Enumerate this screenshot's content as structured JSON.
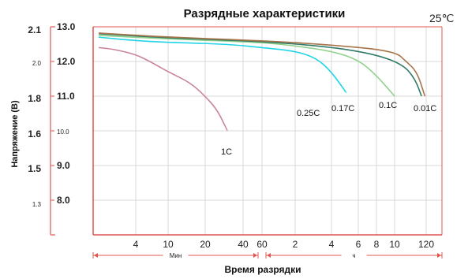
{
  "chart_data": {
    "type": "line",
    "title": "Разрядные характеристики",
    "temperature": "25℃",
    "ylabel": "Напряжение (В)",
    "xlabel": "Время разрядки",
    "x_scale": "log",
    "x_unit_ranges": [
      {
        "label": "Мин",
        "from": "0",
        "to": "60 мин"
      },
      {
        "label": "ч",
        "from": "60 мин",
        "to": "120 ч"
      }
    ],
    "x_ticks": [
      {
        "label": "4",
        "minutes": 4
      },
      {
        "label": "10",
        "minutes": 10
      },
      {
        "label": "20",
        "minutes": 20
      },
      {
        "label": "40",
        "minutes": 40
      },
      {
        "label": "60",
        "minutes": 60
      },
      {
        "label": "2",
        "minutes": 120
      },
      {
        "label": "4",
        "minutes": 240
      },
      {
        "label": "6",
        "minutes": 360
      },
      {
        "label": "8",
        "minutes": 480
      },
      {
        "label": "10",
        "minutes": 600
      },
      {
        "label": "120",
        "minutes": 7200
      }
    ],
    "y_cell_ticks": [
      {
        "label": "2.1",
        "value": 2.1
      },
      {
        "label": "2.0",
        "value": 2.0
      },
      {
        "label": "1.8",
        "value": 1.8
      },
      {
        "label": "1.6",
        "value": 1.6
      },
      {
        "label": "1.5",
        "value": 1.5
      },
      {
        "label": "1.3",
        "value": 1.3
      }
    ],
    "y_battery_ticks": [
      {
        "label": "13.0",
        "value": 13.0
      },
      {
        "label": "12.0",
        "value": 12.0
      },
      {
        "label": "11.0",
        "value": 11.0
      },
      {
        "label": "10.0",
        "value": 10.0
      },
      {
        "label": "9.0",
        "value": 9.0
      },
      {
        "label": "8.0",
        "value": 8.0
      }
    ],
    "ylim": [
      7.0,
      13.0
    ],
    "grid": true,
    "series": [
      {
        "name": "1C",
        "color": "#c9839a",
        "points": [
          [
            1.2,
            12.4
          ],
          [
            2,
            12.35
          ],
          [
            4,
            12.2
          ],
          [
            6,
            12.0
          ],
          [
            10,
            11.7
          ],
          [
            15,
            11.4
          ],
          [
            20,
            11.0
          ],
          [
            25,
            10.6
          ],
          [
            30,
            10.0
          ]
        ]
      },
      {
        "name": "0.25C",
        "color": "#22d4e6",
        "points": [
          [
            1.2,
            12.7
          ],
          [
            4,
            12.6
          ],
          [
            10,
            12.55
          ],
          [
            30,
            12.5
          ],
          [
            60,
            12.4
          ],
          [
            120,
            12.3
          ],
          [
            180,
            12.1
          ],
          [
            240,
            11.7
          ],
          [
            300,
            11.1
          ]
        ]
      },
      {
        "name": "0.17C",
        "color": "#8fd08a",
        "points": [
          [
            1.2,
            12.75
          ],
          [
            10,
            12.65
          ],
          [
            60,
            12.55
          ],
          [
            120,
            12.45
          ],
          [
            240,
            12.3
          ],
          [
            360,
            12.05
          ],
          [
            480,
            11.6
          ],
          [
            600,
            11.0
          ]
        ]
      },
      {
        "name": "0.1C",
        "color": "#2f7a66",
        "points": [
          [
            1.2,
            12.8
          ],
          [
            10,
            12.68
          ],
          [
            60,
            12.58
          ],
          [
            240,
            12.42
          ],
          [
            480,
            12.2
          ],
          [
            1200,
            11.9
          ],
          [
            3000,
            11.5
          ],
          [
            5000,
            11.0
          ]
        ]
      },
      {
        "name": "0.01C",
        "color": "#a8744a",
        "points": [
          [
            1.2,
            12.82
          ],
          [
            10,
            12.7
          ],
          [
            60,
            12.6
          ],
          [
            240,
            12.48
          ],
          [
            600,
            12.3
          ],
          [
            1500,
            12.0
          ],
          [
            3500,
            11.7
          ],
          [
            6500,
            11.0
          ]
        ]
      }
    ],
    "series_labels": [
      {
        "text": "1C"
      },
      {
        "text": "0.25C"
      },
      {
        "text": "0.17C"
      },
      {
        "text": "0.1C"
      },
      {
        "text": "0.01C"
      }
    ]
  }
}
